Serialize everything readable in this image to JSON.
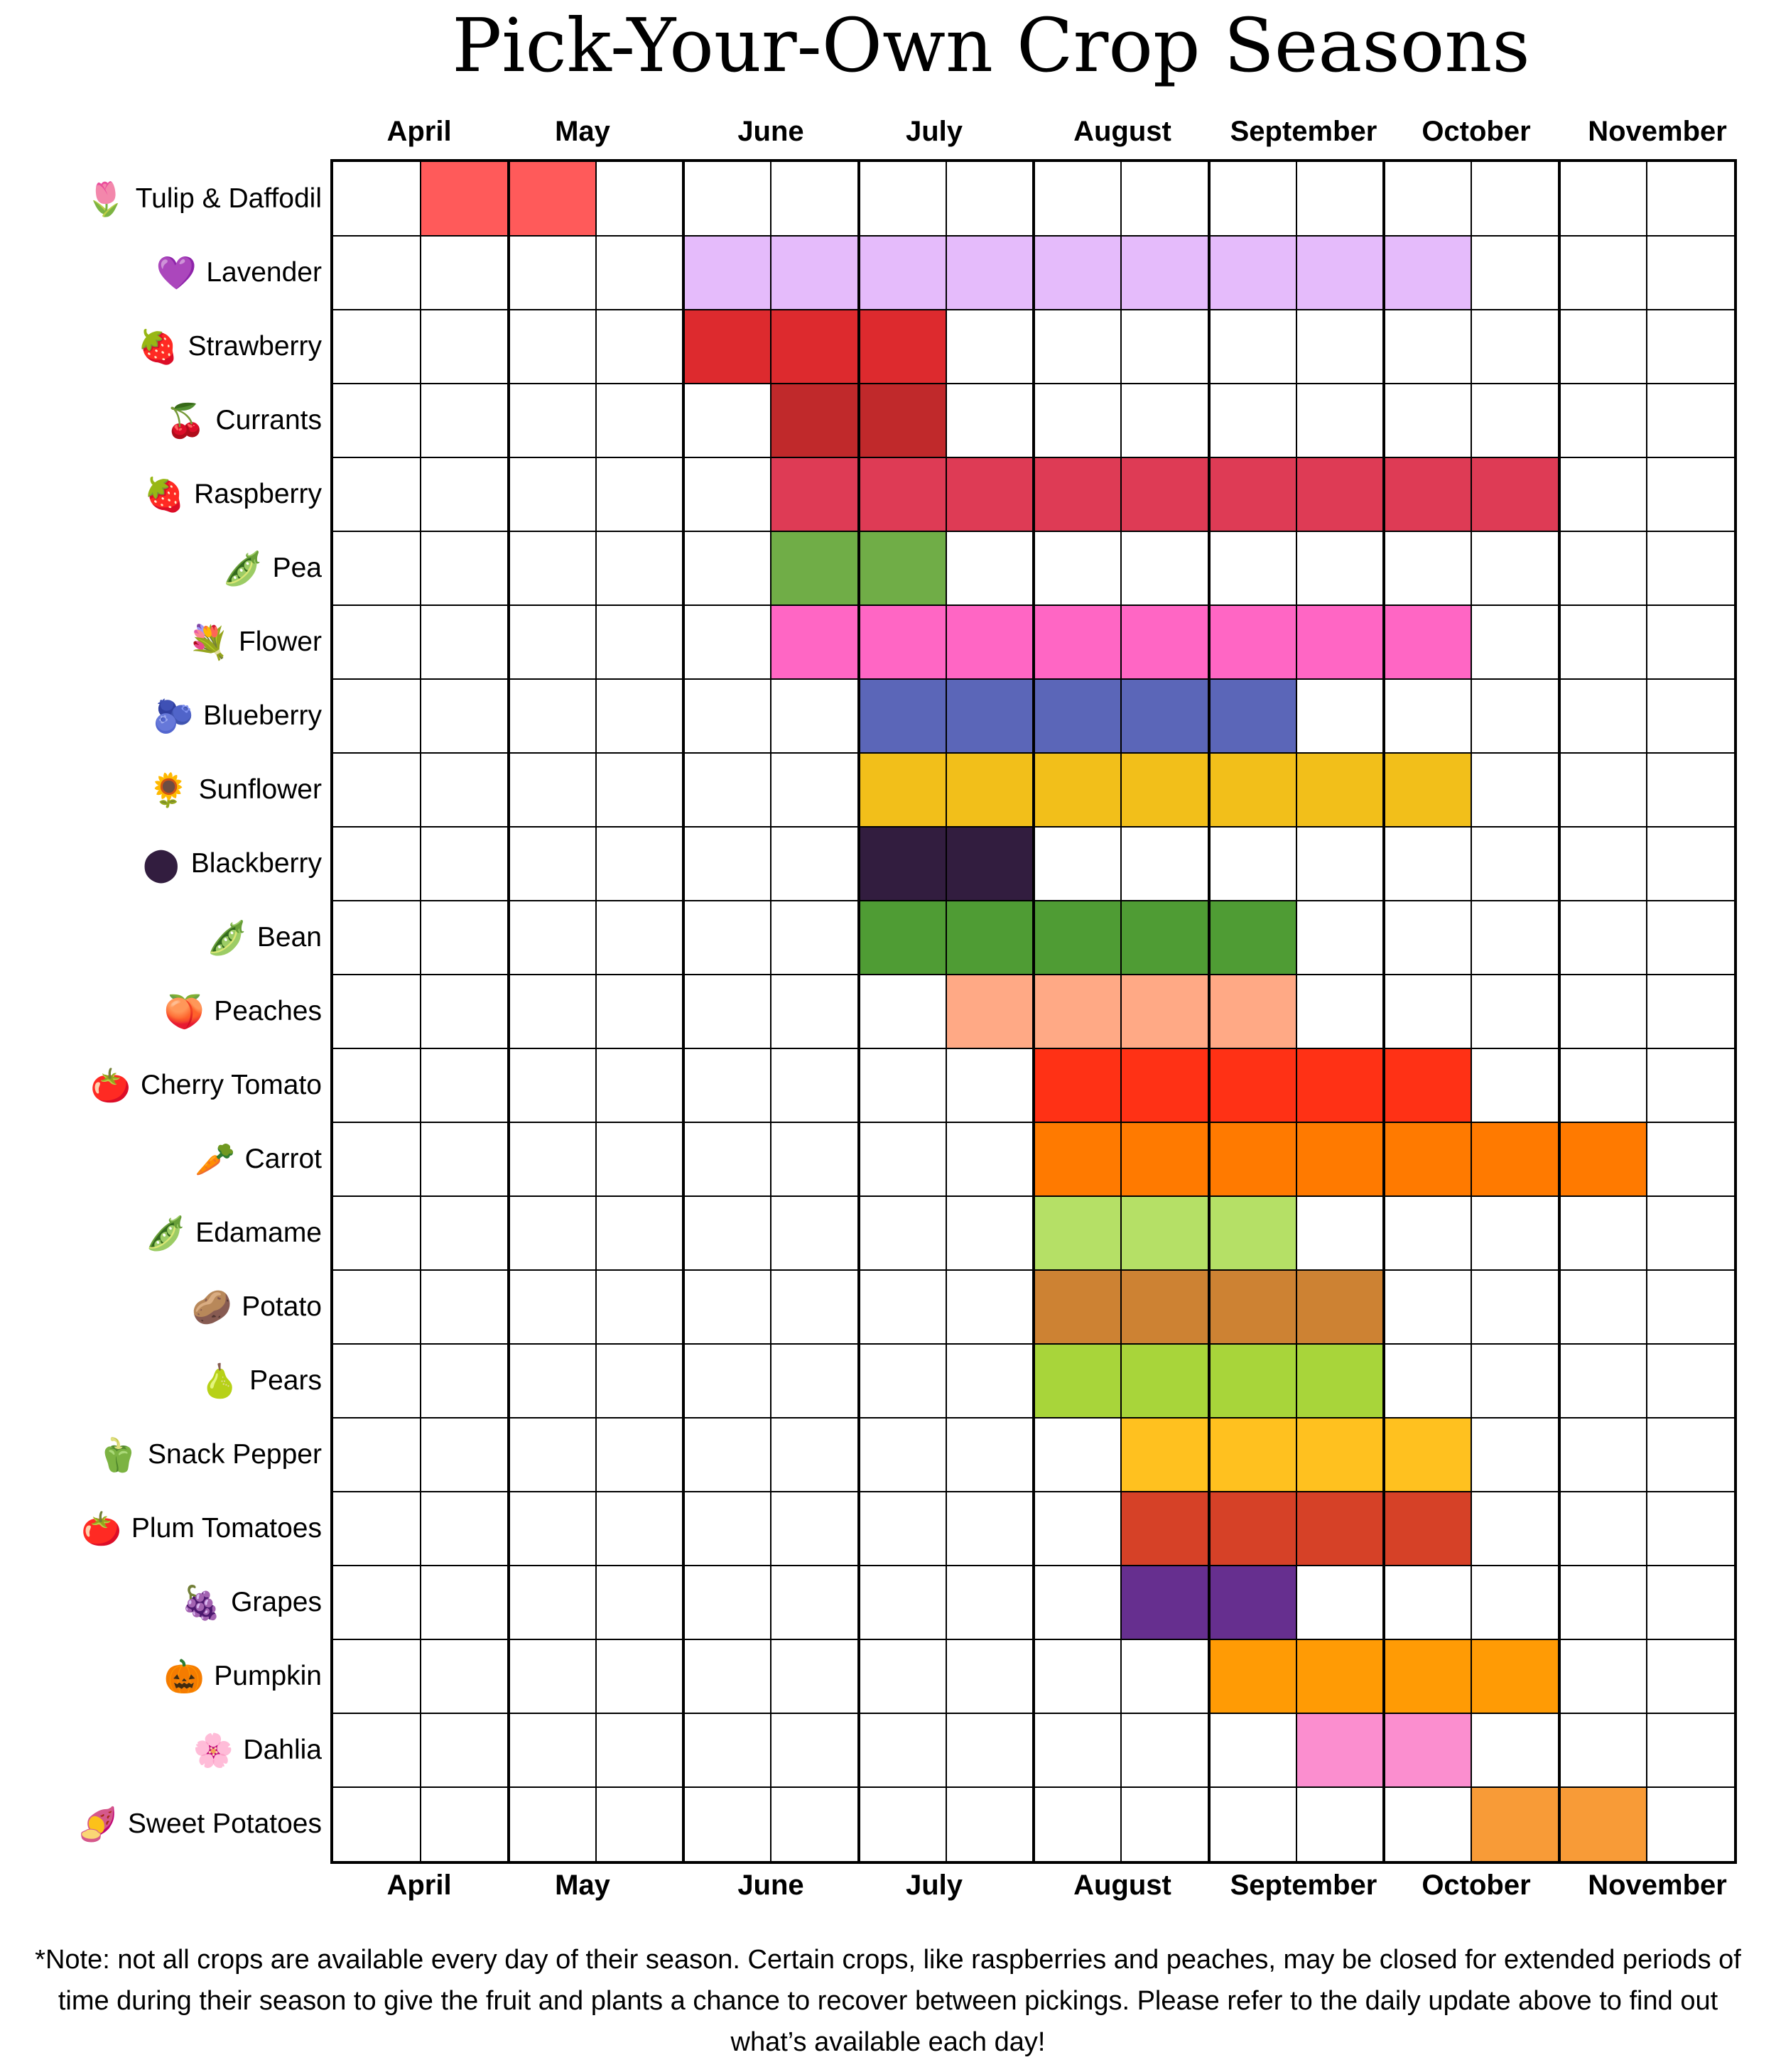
{
  "title": "Pick-Your-Own Crop Seasons",
  "months": [
    "April",
    "May",
    "June",
    "July",
    "August",
    "September",
    "October",
    "November"
  ],
  "chart_data": {
    "type": "table",
    "columns_per_month": 2,
    "month_columns": [
      "April",
      "April",
      "May",
      "May",
      "June",
      "June",
      "July",
      "July",
      "August",
      "August",
      "September",
      "September",
      "October",
      "October",
      "November",
      "November"
    ],
    "crops": [
      {
        "name": "Tulip & Daffodil",
        "icon": "tulip-icon",
        "glyph": "🌷",
        "start": 1,
        "end": 2,
        "color": "#ff5a5a"
      },
      {
        "name": "Lavender",
        "icon": "lavender-icon",
        "glyph": "💜",
        "start": 4,
        "end": 12,
        "color": "#e5bbfb"
      },
      {
        "name": "Strawberry",
        "icon": "strawberry-icon",
        "glyph": "🍓",
        "start": 4,
        "end": 6,
        "color": "#dd2a2e"
      },
      {
        "name": "Currants",
        "icon": "currants-icon",
        "glyph": "🍒",
        "start": 5,
        "end": 6,
        "color": "#c0292b"
      },
      {
        "name": "Raspberry",
        "icon": "raspberry-icon",
        "glyph": "🍓",
        "start": 5,
        "end": 13,
        "color": "#de3b55"
      },
      {
        "name": "Pea",
        "icon": "pea-icon",
        "glyph": "🫛",
        "start": 5,
        "end": 6,
        "color": "#70ad47"
      },
      {
        "name": "Flower",
        "icon": "flower-bouquet-icon",
        "glyph": "💐",
        "start": 5,
        "end": 12,
        "color": "#ff66c4"
      },
      {
        "name": "Blueberry",
        "icon": "blueberry-icon",
        "glyph": "🫐",
        "start": 6,
        "end": 10,
        "color": "#5b66b8"
      },
      {
        "name": "Sunflower",
        "icon": "sunflower-icon",
        "glyph": "🌻",
        "start": 6,
        "end": 12,
        "color": "#f2bf1a"
      },
      {
        "name": "Blackberry",
        "icon": "blackberry-icon",
        "glyph": "⬤",
        "start": 6,
        "end": 7,
        "color": "#321d3f"
      },
      {
        "name": "Bean",
        "icon": "bean-icon",
        "glyph": "🫛",
        "start": 6,
        "end": 10,
        "color": "#4f9c34"
      },
      {
        "name": "Peaches",
        "icon": "peach-icon",
        "glyph": "🍑",
        "start": 7,
        "end": 10,
        "color": "#ffa985"
      },
      {
        "name": "Cherry Tomato",
        "icon": "cherry-tomato-icon",
        "glyph": "🍅",
        "start": 8,
        "end": 12,
        "color": "#ff3115"
      },
      {
        "name": "Carrot",
        "icon": "carrot-icon",
        "glyph": "🥕",
        "start": 8,
        "end": 14,
        "color": "#ff7a00"
      },
      {
        "name": "Edamame",
        "icon": "edamame-icon",
        "glyph": "🫛",
        "start": 8,
        "end": 10,
        "color": "#b5e066"
      },
      {
        "name": "Potato",
        "icon": "potato-icon",
        "glyph": "🥔",
        "start": 8,
        "end": 11,
        "color": "#cd8233"
      },
      {
        "name": "Pears",
        "icon": "pear-icon",
        "glyph": "🍐",
        "start": 8,
        "end": 11,
        "color": "#a8d53a"
      },
      {
        "name": "Snack Pepper",
        "icon": "pepper-icon",
        "glyph": "🫑",
        "start": 9,
        "end": 12,
        "color": "#ffc11f"
      },
      {
        "name": "Plum Tomatoes",
        "icon": "plum-tomato-icon",
        "glyph": "🍅",
        "start": 9,
        "end": 12,
        "color": "#d64127"
      },
      {
        "name": "Grapes",
        "icon": "grapes-icon",
        "glyph": "🍇",
        "start": 9,
        "end": 10,
        "color": "#662f8f"
      },
      {
        "name": "Pumpkin",
        "icon": "pumpkin-icon",
        "glyph": "🎃",
        "start": 10,
        "end": 13,
        "color": "#ff9b05"
      },
      {
        "name": "Dahlia",
        "icon": "dahlia-icon",
        "glyph": "🌸",
        "start": 11,
        "end": 12,
        "color": "#fb8ecf"
      },
      {
        "name": "Sweet Potatoes",
        "icon": "sweet-potato-icon",
        "glyph": "🍠",
        "start": 13,
        "end": 14,
        "color": "#f89b37"
      }
    ]
  },
  "note": [
    "*Note: not all crops are available every day of their season. Certain crops, like raspberries and peaches, may be closed for extended periods of",
    "time during their season to give the fruit and plants a chance to recover between pickings. Please refer to the daily update above  to find out",
    "what’s available each day!"
  ],
  "colors": {
    "grid_line": "#000000",
    "background": "#ffffff"
  }
}
